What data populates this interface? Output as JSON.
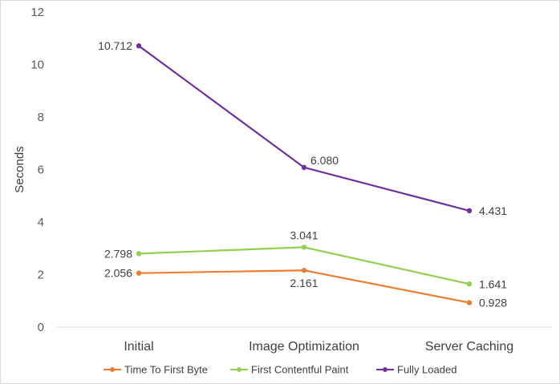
{
  "chart_data": {
    "type": "line",
    "title": "",
    "xlabel": "",
    "ylabel": "Seconds",
    "ylim": [
      0,
      12
    ],
    "yticks": [
      0,
      2,
      4,
      6,
      8,
      10,
      12
    ],
    "categories": [
      "Initial",
      "Image Optimization",
      "Server Caching"
    ],
    "grid": false,
    "legend_position": "bottom",
    "series": [
      {
        "name": "Time To First Byte",
        "color": "#ed7d31",
        "values": [
          2.056,
          2.161,
          0.928
        ],
        "labels": [
          "2.056",
          "2.161",
          "0.928"
        ]
      },
      {
        "name": "First Contentful Paint",
        "color": "#92d050",
        "values": [
          2.798,
          3.041,
          1.641
        ],
        "labels": [
          "2.798",
          "3.041",
          "1.641"
        ]
      },
      {
        "name": "Fully Loaded",
        "color": "#7030a0",
        "values": [
          10.712,
          6.08,
          4.431
        ],
        "labels": [
          "10.712",
          "6.080",
          "4.431"
        ]
      }
    ]
  }
}
